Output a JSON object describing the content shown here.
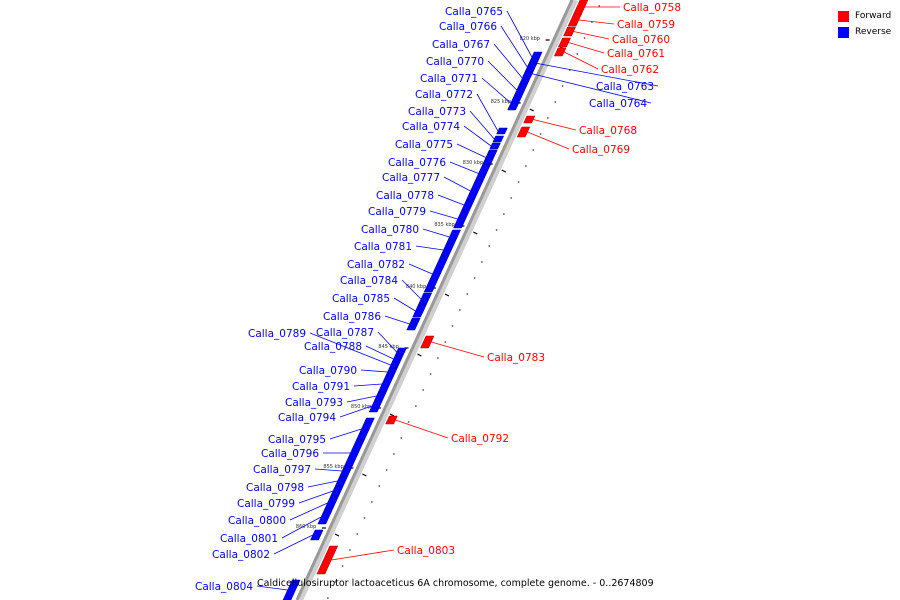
{
  "colors": {
    "forward": "#ff0000",
    "reverse": "#0000ff",
    "axis": "#999999",
    "leader": "#888888"
  },
  "legend": [
    {
      "label": "Forward",
      "color": "#ff0000"
    },
    {
      "label": "Reverse",
      "color": "#0000ff"
    }
  ],
  "caption": "Caldicellulosiruptor lactoaceticus 6A chromosome, complete genome. - 0..2674809",
  "axis_ticks": [
    "820 kbp",
    "825 kbp",
    "830 kbp",
    "835 kbp",
    "840 kbp",
    "845 kbp",
    "850 kbp",
    "855 kbp",
    "860 kbp"
  ],
  "genes": [
    {
      "name": "Calla_0758",
      "strand": "forward"
    },
    {
      "name": "Calla_0759",
      "strand": "forward"
    },
    {
      "name": "Calla_0760",
      "strand": "forward"
    },
    {
      "name": "Calla_0761",
      "strand": "forward"
    },
    {
      "name": "Calla_0762",
      "strand": "forward"
    },
    {
      "name": "Calla_0763",
      "strand": "reverse"
    },
    {
      "name": "Calla_0764",
      "strand": "reverse"
    },
    {
      "name": "Calla_0765",
      "strand": "reverse"
    },
    {
      "name": "Calla_0766",
      "strand": "reverse"
    },
    {
      "name": "Calla_0767",
      "strand": "reverse"
    },
    {
      "name": "Calla_0768",
      "strand": "forward"
    },
    {
      "name": "Calla_0769",
      "strand": "forward"
    },
    {
      "name": "Calla_0770",
      "strand": "reverse"
    },
    {
      "name": "Calla_0771",
      "strand": "reverse"
    },
    {
      "name": "Calla_0772",
      "strand": "reverse"
    },
    {
      "name": "Calla_0773",
      "strand": "reverse"
    },
    {
      "name": "Calla_0774",
      "strand": "reverse"
    },
    {
      "name": "Calla_0775",
      "strand": "reverse"
    },
    {
      "name": "Calla_0776",
      "strand": "reverse"
    },
    {
      "name": "Calla_0777",
      "strand": "reverse"
    },
    {
      "name": "Calla_0778",
      "strand": "reverse"
    },
    {
      "name": "Calla_0779",
      "strand": "reverse"
    },
    {
      "name": "Calla_0780",
      "strand": "reverse"
    },
    {
      "name": "Calla_0781",
      "strand": "reverse"
    },
    {
      "name": "Calla_0782",
      "strand": "reverse"
    },
    {
      "name": "Calla_0783",
      "strand": "forward"
    },
    {
      "name": "Calla_0784",
      "strand": "reverse"
    },
    {
      "name": "Calla_0785",
      "strand": "reverse"
    },
    {
      "name": "Calla_0786",
      "strand": "reverse"
    },
    {
      "name": "Calla_0787",
      "strand": "reverse"
    },
    {
      "name": "Calla_0788",
      "strand": "reverse"
    },
    {
      "name": "Calla_0789",
      "strand": "reverse"
    },
    {
      "name": "Calla_0790",
      "strand": "reverse"
    },
    {
      "name": "Calla_0791",
      "strand": "reverse"
    },
    {
      "name": "Calla_0792",
      "strand": "forward"
    },
    {
      "name": "Calla_0793",
      "strand": "reverse"
    },
    {
      "name": "Calla_0794",
      "strand": "reverse"
    },
    {
      "name": "Calla_0795",
      "strand": "reverse"
    },
    {
      "name": "Calla_0796",
      "strand": "reverse"
    },
    {
      "name": "Calla_0797",
      "strand": "reverse"
    },
    {
      "name": "Calla_0798",
      "strand": "reverse"
    },
    {
      "name": "Calla_0799",
      "strand": "reverse"
    },
    {
      "name": "Calla_0800",
      "strand": "reverse"
    },
    {
      "name": "Calla_0801",
      "strand": "reverse"
    },
    {
      "name": "Calla_0802",
      "strand": "reverse"
    },
    {
      "name": "Calla_0803",
      "strand": "forward"
    },
    {
      "name": "Calla_0804",
      "strand": "reverse"
    }
  ]
}
